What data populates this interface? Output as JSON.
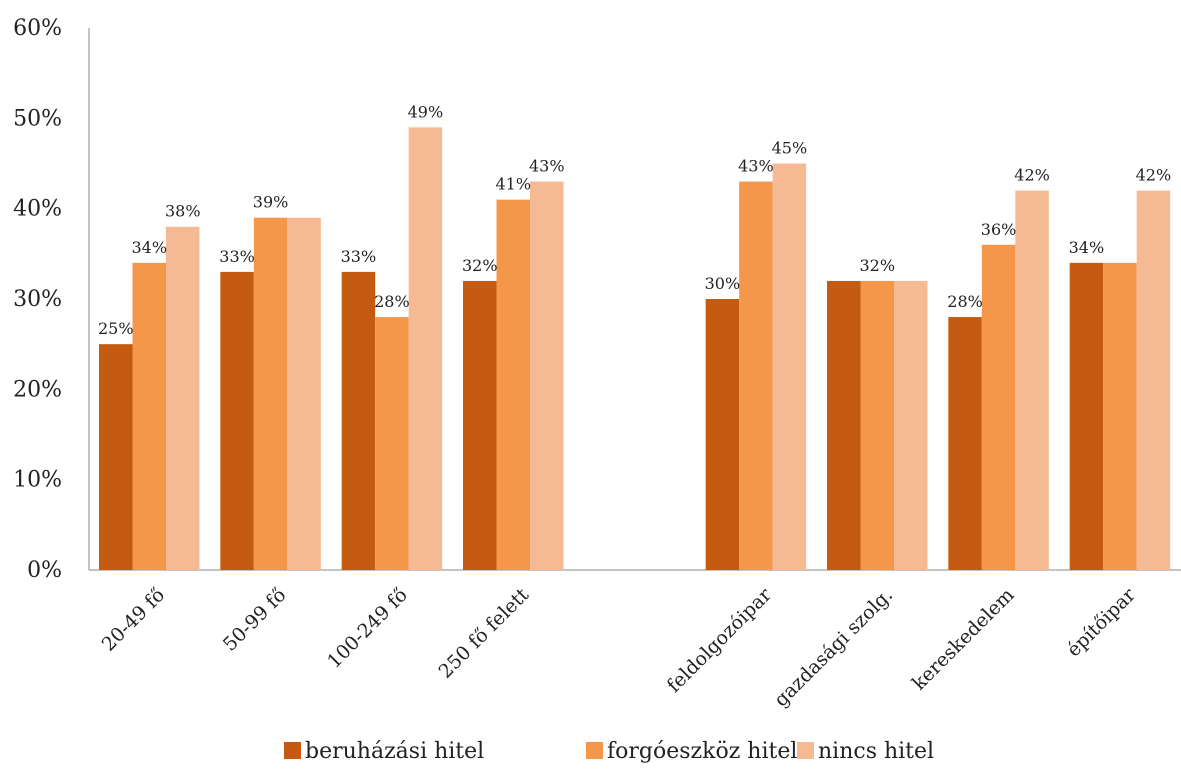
{
  "chart_data": {
    "type": "bar",
    "categories": [
      "20-49 fő",
      "50-99 fő",
      "100-249 fő",
      "250 fő felett",
      "",
      "feldolgozóipar",
      "gazdasági szolg.",
      "kereskedelem",
      "építőipar"
    ],
    "series": [
      {
        "name": "beruházási hitel",
        "color": "#C55A11",
        "values": [
          25,
          33,
          33,
          32,
          null,
          30,
          32,
          28,
          34
        ]
      },
      {
        "name": "forgóeszköz hitel",
        "color": "#F4974A",
        "values": [
          34,
          39,
          28,
          41,
          null,
          43,
          32,
          36,
          34
        ]
      },
      {
        "name": "nincs hitel",
        "color": "#F5B994",
        "values": [
          38,
          39,
          49,
          43,
          null,
          45,
          32,
          42,
          42
        ]
      }
    ],
    "data_labels": [
      [
        "25%",
        "34%",
        "38%"
      ],
      [
        "33%",
        "39%",
        ""
      ],
      [
        "33%",
        "28%",
        "49%"
      ],
      [
        "32%",
        "41%",
        "43%"
      ],
      [
        "",
        "",
        ""
      ],
      [
        "30%",
        "43%",
        "45%"
      ],
      [
        "",
        "32%",
        ""
      ],
      [
        "28%",
        "36%",
        "42%"
      ],
      [
        "34%",
        "",
        "42%"
      ]
    ],
    "y_ticks": [
      "0%",
      "10%",
      "20%",
      "30%",
      "40%",
      "50%",
      "60%"
    ],
    "ylim": [
      0,
      60
    ],
    "grid": false,
    "legend_position": "bottom",
    "title": "",
    "xlabel": "",
    "ylabel": ""
  }
}
